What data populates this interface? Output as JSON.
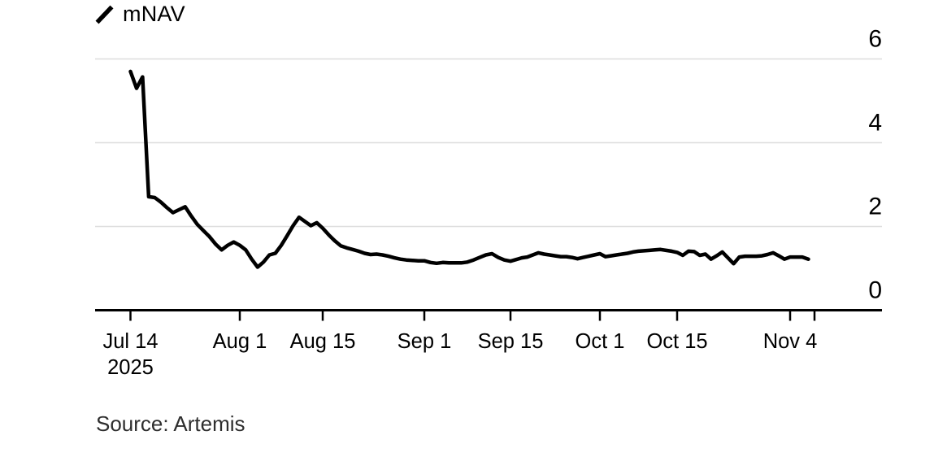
{
  "legend": {
    "label": "mNAV"
  },
  "footer": {
    "source": "Source: Artemis"
  },
  "chart_data": {
    "type": "line",
    "title": "",
    "legend_entries": [
      "mNAV"
    ],
    "legend_position": "top-left",
    "grid": "horizontal",
    "source": "Source: Artemis",
    "colors": {
      "line": "#000000",
      "grid": "#dedede",
      "axis": "#000000",
      "text": "#000000",
      "source_text": "#2e2e2e",
      "background": "#ffffff"
    },
    "y_axis": {
      "side": "right",
      "ticks": [
        0,
        2,
        4,
        6
      ],
      "ylim": [
        0,
        6.2
      ]
    },
    "x_axis": {
      "start_date": "2025-07-14",
      "tick_labels": [
        {
          "label": "Jul 14",
          "sublabel": "2025",
          "day": 0
        },
        {
          "label": "Aug 1",
          "sublabel": "",
          "day": 18
        },
        {
          "label": "Aug 15",
          "sublabel": "",
          "day": 32
        },
        {
          "label": "Sep 1",
          "sublabel": "",
          "day": 49
        },
        {
          "label": "Sep 15",
          "sublabel": "",
          "day": 63
        },
        {
          "label": "Oct 1",
          "sublabel": "",
          "day": 79
        },
        {
          "label": "Oct 15",
          "sublabel": "",
          "day": 93
        },
        {
          "label": "Nov 4",
          "sublabel": "",
          "day": 113
        },
        {
          "label": "",
          "sublabel": "",
          "day": 117
        }
      ]
    },
    "series": [
      {
        "name": "mNAV",
        "start_date": "2025-07-14",
        "interval_days": 1,
        "values": [
          5.7,
          5.3,
          5.57,
          2.71,
          2.69,
          2.58,
          2.45,
          2.33,
          2.4,
          2.47,
          2.25,
          2.05,
          1.9,
          1.76,
          1.58,
          1.44,
          1.55,
          1.63,
          1.55,
          1.44,
          1.22,
          1.03,
          1.15,
          1.32,
          1.36,
          1.55,
          1.78,
          2.02,
          2.22,
          2.12,
          2.02,
          2.09,
          1.96,
          1.8,
          1.66,
          1.54,
          1.49,
          1.45,
          1.41,
          1.36,
          1.33,
          1.34,
          1.32,
          1.29,
          1.25,
          1.22,
          1.2,
          1.19,
          1.18,
          1.18,
          1.14,
          1.12,
          1.14,
          1.13,
          1.13,
          1.13,
          1.15,
          1.2,
          1.26,
          1.32,
          1.35,
          1.26,
          1.2,
          1.17,
          1.21,
          1.25,
          1.27,
          1.32,
          1.37,
          1.34,
          1.32,
          1.3,
          1.28,
          1.28,
          1.26,
          1.23,
          1.26,
          1.29,
          1.32,
          1.35,
          1.28,
          1.3,
          1.32,
          1.34,
          1.36,
          1.39,
          1.41,
          1.42,
          1.43,
          1.44,
          1.45,
          1.43,
          1.41,
          1.38,
          1.31,
          1.41,
          1.4,
          1.31,
          1.34,
          1.22,
          1.3,
          1.39,
          1.25,
          1.11,
          1.27,
          1.29,
          1.29,
          1.29,
          1.3,
          1.33,
          1.37,
          1.3,
          1.22,
          1.27,
          1.27,
          1.27,
          1.22
        ]
      }
    ]
  }
}
